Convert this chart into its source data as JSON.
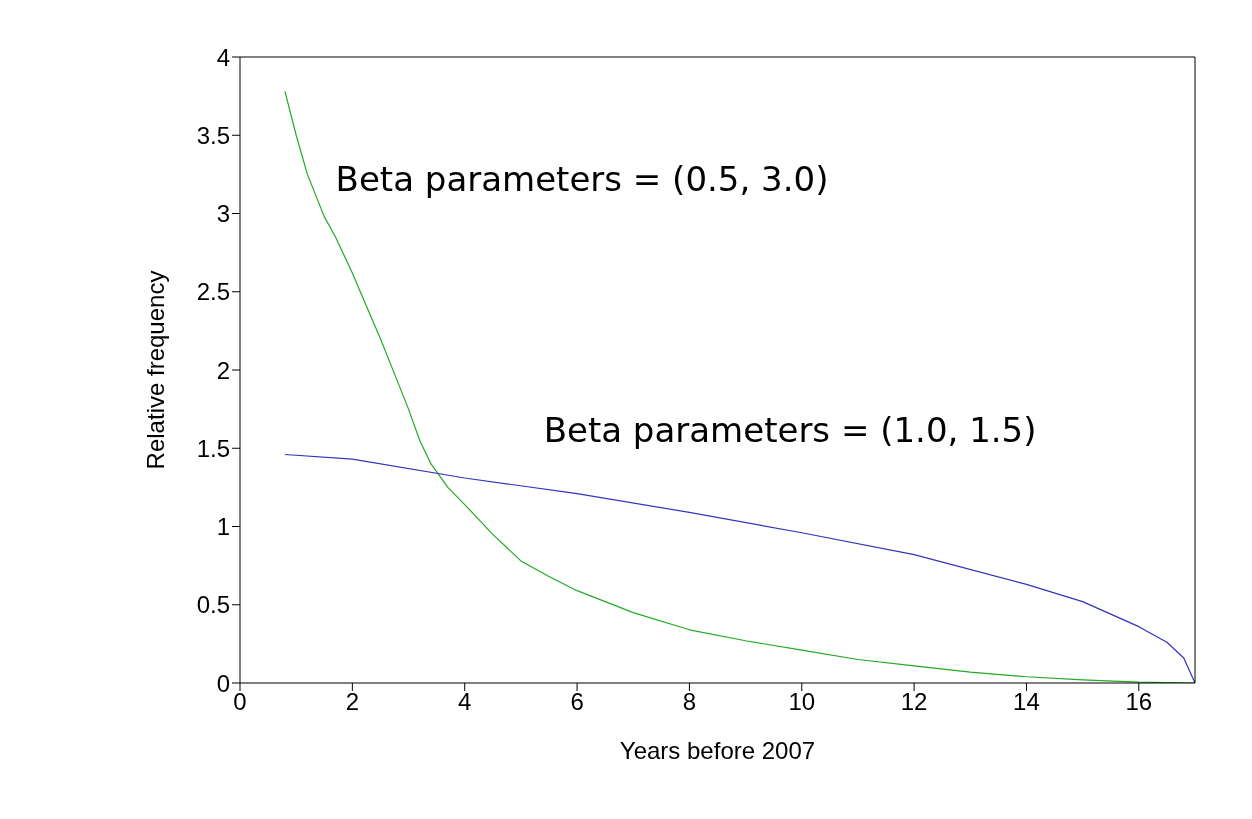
{
  "chart_data": {
    "type": "line",
    "xlabel": "Years before 2007",
    "ylabel": "Relative frequency",
    "xlim": [
      0,
      17
    ],
    "xticks": [
      0,
      2,
      4,
      6,
      8,
      10,
      12,
      14,
      16
    ],
    "ylim": [
      0,
      4
    ],
    "yticks": [
      0,
      0.5,
      1,
      1.5,
      2,
      2.5,
      3,
      3.5,
      4
    ],
    "marker": "none",
    "line_style": "solid",
    "series": [
      {
        "name": "Beta parameters = (0.5, 3.0)",
        "color": "#22aa22",
        "x": [
          0.8,
          1,
          1.2,
          1.5,
          1.7,
          2,
          2.2,
          2.5,
          2.7,
          3,
          3.2,
          3.4,
          3.7,
          4,
          4.5,
          5,
          5.5,
          6,
          7,
          8,
          9,
          10,
          11,
          12,
          13,
          14,
          15,
          16,
          17
        ],
        "values": [
          3.78,
          3.5,
          3.25,
          2.98,
          2.85,
          2.62,
          2.45,
          2.2,
          2.02,
          1.75,
          1.55,
          1.4,
          1.25,
          1.14,
          0.95,
          0.78,
          0.68,
          0.59,
          0.45,
          0.34,
          0.27,
          0.21,
          0.15,
          0.11,
          0.07,
          0.04,
          0.02,
          0.005,
          0
        ]
      },
      {
        "name": "Beta parameters = (1.0, 1.5)",
        "color": "#3333bb",
        "x": [
          0.8,
          2,
          4,
          6,
          8,
          10,
          12,
          14,
          15,
          16,
          16.5,
          16.8,
          17
        ],
        "values": [
          1.46,
          1.43,
          1.31,
          1.21,
          1.09,
          0.96,
          0.82,
          0.63,
          0.52,
          0.36,
          0.26,
          0.16,
          0
        ]
      }
    ]
  }
}
